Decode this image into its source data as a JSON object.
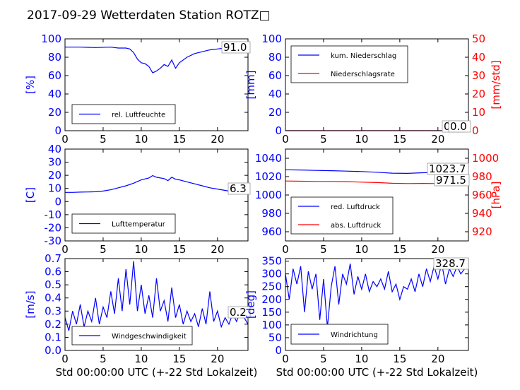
{
  "figure": {
    "title": "2017-09-29 Wetterdaten Station ROTZ□"
  },
  "colors": {
    "primary": "#0000ff",
    "secondary": "#ff0000",
    "text": "#000000"
  },
  "chart_data": [
    {
      "type": "line",
      "xlim": [
        0,
        24
      ],
      "ylim": [
        0,
        100
      ],
      "xticks": [
        "0",
        "5",
        "10",
        "15",
        "20"
      ],
      "yticks": [
        "0",
        "20",
        "40",
        "60",
        "80",
        "100"
      ],
      "ylabel": "[%]",
      "xlabel": "",
      "legend": "lower-left",
      "value_label": "91.0",
      "series": [
        {
          "name": "rel. Luftfeuchte",
          "axis": "left",
          "x": [
            0,
            2,
            4,
            6,
            7,
            8,
            8.5,
            9,
            9.5,
            10,
            10.5,
            11,
            11.5,
            12,
            12.5,
            13,
            13.5,
            14,
            14.5,
            15,
            16,
            17,
            18,
            19,
            20,
            21,
            22,
            23,
            24
          ],
          "y": [
            91,
            91,
            90.5,
            91,
            90,
            90,
            89,
            85,
            78,
            74,
            73,
            70,
            63,
            65,
            68,
            72,
            70,
            77,
            68,
            74,
            80,
            84,
            86,
            88,
            89,
            90,
            91,
            91,
            91
          ]
        }
      ]
    },
    {
      "type": "line",
      "xlim": [
        0,
        24
      ],
      "ylim": [
        0,
        100
      ],
      "y2lim": [
        0,
        50
      ],
      "xticks": [
        "0",
        "5",
        "10",
        "15",
        "20"
      ],
      "yticks": [
        "0",
        "20",
        "40",
        "60",
        "80",
        "100"
      ],
      "y2ticks": [
        "0",
        "10",
        "20",
        "30",
        "40",
        "50"
      ],
      "ylabel": "[mm]",
      "y2label": "[mm/std]",
      "xlabel": "",
      "legend": "upper-left",
      "value_label": "0.0",
      "value_label2": "0.0",
      "series": [
        {
          "name": "kum. Niederschlag",
          "axis": "left",
          "x": [
            0,
            24
          ],
          "y": [
            0,
            0
          ]
        },
        {
          "name": "Niederschlagsrate",
          "axis": "right",
          "x": [
            0,
            24
          ],
          "y": [
            0,
            0
          ]
        }
      ]
    },
    {
      "type": "line",
      "xlim": [
        0,
        24
      ],
      "ylim": [
        -30,
        40
      ],
      "xticks": [
        "0",
        "5",
        "10",
        "15",
        "20"
      ],
      "yticks": [
        "-30",
        "-20",
        "-10",
        "0",
        "10",
        "20",
        "30",
        "40"
      ],
      "ylabel": "[C]",
      "xlabel": "",
      "legend": "lower-left",
      "value_label": "6.3",
      "series": [
        {
          "name": "Lufttemperatur",
          "axis": "left",
          "x": [
            0,
            1,
            2,
            3,
            4,
            5,
            6,
            7,
            8,
            9,
            10,
            11,
            11.5,
            12,
            13,
            13.5,
            14,
            14.5,
            15,
            16,
            17,
            18,
            19,
            20,
            21,
            22,
            23,
            24
          ],
          "y": [
            7,
            7,
            7.2,
            7.3,
            7.5,
            8,
            9,
            10.5,
            12,
            14,
            16.5,
            18,
            19.8,
            18.5,
            17.5,
            16,
            18.5,
            17,
            16.5,
            15,
            13.5,
            12,
            10.5,
            9.5,
            8.5,
            7.5,
            7,
            6.3
          ]
        }
      ]
    },
    {
      "type": "line",
      "xlim": [
        0,
        24
      ],
      "ylim": [
        950,
        1050
      ],
      "y2lim": [
        910,
        1010
      ],
      "xticks": [
        "0",
        "5",
        "10",
        "15",
        "20"
      ],
      "yticks": [
        "960",
        "980",
        "1000",
        "1020",
        "1040"
      ],
      "y2ticks": [
        "920",
        "940",
        "960",
        "980",
        "1000"
      ],
      "ylabel": "",
      "y2label": "[hPa]",
      "xlabel": "",
      "legend": "lower-left",
      "value_label": "1023.7",
      "value_label2": "971.5",
      "series": [
        {
          "name": "red. Luftdruck",
          "axis": "left",
          "x": [
            0,
            2,
            4,
            6,
            8,
            10,
            12,
            14,
            16,
            18,
            20,
            22,
            24
          ],
          "y": [
            1027.5,
            1027.2,
            1026.8,
            1026.5,
            1026,
            1025.5,
            1024.8,
            1023.8,
            1023.5,
            1024.2,
            1024.5,
            1024,
            1023.7
          ]
        },
        {
          "name": "abs. Luftdruck",
          "axis": "right",
          "x": [
            0,
            2,
            4,
            6,
            8,
            10,
            12,
            14,
            16,
            18,
            20,
            22,
            24
          ],
          "y": [
            975.2,
            975,
            974.8,
            974.8,
            974.5,
            974,
            973.5,
            972.8,
            972.5,
            972.6,
            972.5,
            972,
            971.5
          ]
        }
      ]
    },
    {
      "type": "line",
      "xlim": [
        0,
        24
      ],
      "ylim": [
        0,
        0.7
      ],
      "xticks": [
        "0",
        "5",
        "10",
        "15",
        "20"
      ],
      "yticks": [
        "0.0",
        "0.1",
        "0.2",
        "0.3",
        "0.4",
        "0.5",
        "0.6",
        "0.7"
      ],
      "ylabel": "[m/s]",
      "xlabel": "Std 00:00:00 UTC (+-22 Std Lokalzeit)",
      "legend": "lower-center",
      "value_label": "0.2",
      "series": [
        {
          "name": "Windgeschwindigkeit",
          "axis": "left",
          "x": [
            0,
            0.5,
            1,
            1.5,
            2,
            2.5,
            3,
            3.5,
            4,
            4.5,
            5,
            5.5,
            6,
            6.5,
            7,
            7.5,
            8,
            8.5,
            9,
            9.5,
            10,
            10.5,
            11,
            11.5,
            12,
            12.5,
            13,
            13.5,
            14,
            14.5,
            15,
            15.5,
            16,
            16.5,
            17,
            17.5,
            18,
            18.5,
            19,
            19.5,
            20,
            20.5,
            21,
            21.5,
            22,
            22.5,
            23,
            23.5,
            24
          ],
          "y": [
            0.25,
            0.15,
            0.3,
            0.2,
            0.35,
            0.18,
            0.3,
            0.22,
            0.4,
            0.2,
            0.33,
            0.25,
            0.45,
            0.28,
            0.55,
            0.3,
            0.62,
            0.35,
            0.68,
            0.3,
            0.5,
            0.28,
            0.42,
            0.25,
            0.55,
            0.3,
            0.38,
            0.22,
            0.48,
            0.25,
            0.35,
            0.2,
            0.3,
            0.22,
            0.28,
            0.18,
            0.32,
            0.2,
            0.45,
            0.22,
            0.3,
            0.18,
            0.25,
            0.2,
            0.28,
            0.22,
            0.3,
            0.25,
            0.2
          ]
        }
      ]
    },
    {
      "type": "line",
      "xlim": [
        0,
        24
      ],
      "ylim": [
        0,
        360
      ],
      "xticks": [
        "0",
        "5",
        "10",
        "15",
        "20"
      ],
      "yticks": [
        "0",
        "50",
        "100",
        "150",
        "200",
        "250",
        "300",
        "350"
      ],
      "ylabel": "[deg]",
      "xlabel": "Std 00:00:00 UTC (+-22 Std Lokalzeit)",
      "legend": "lower-left",
      "value_label": "328.7",
      "series": [
        {
          "name": "Windrichtung",
          "axis": "left",
          "x": [
            0,
            0.5,
            1,
            1.5,
            2,
            2.5,
            3,
            3.5,
            4,
            4.5,
            5,
            5.5,
            6,
            6.5,
            7,
            7.5,
            8,
            8.5,
            9,
            9.5,
            10,
            10.5,
            11,
            11.5,
            12,
            12.5,
            13,
            13.5,
            14,
            14.5,
            15,
            15.5,
            16,
            16.5,
            17,
            17.5,
            18,
            18.5,
            19,
            19.5,
            20,
            20.5,
            21,
            21.5,
            22,
            22.5,
            23,
            23.5,
            24
          ],
          "y": [
            300,
            200,
            320,
            260,
            330,
            150,
            310,
            240,
            300,
            120,
            280,
            90,
            250,
            330,
            180,
            300,
            260,
            340,
            220,
            290,
            240,
            300,
            230,
            270,
            250,
            280,
            240,
            310,
            230,
            260,
            200,
            250,
            240,
            280,
            230,
            300,
            250,
            320,
            270,
            330,
            280,
            340,
            260,
            320,
            290,
            330,
            300,
            320,
            328.7
          ]
        }
      ]
    }
  ]
}
